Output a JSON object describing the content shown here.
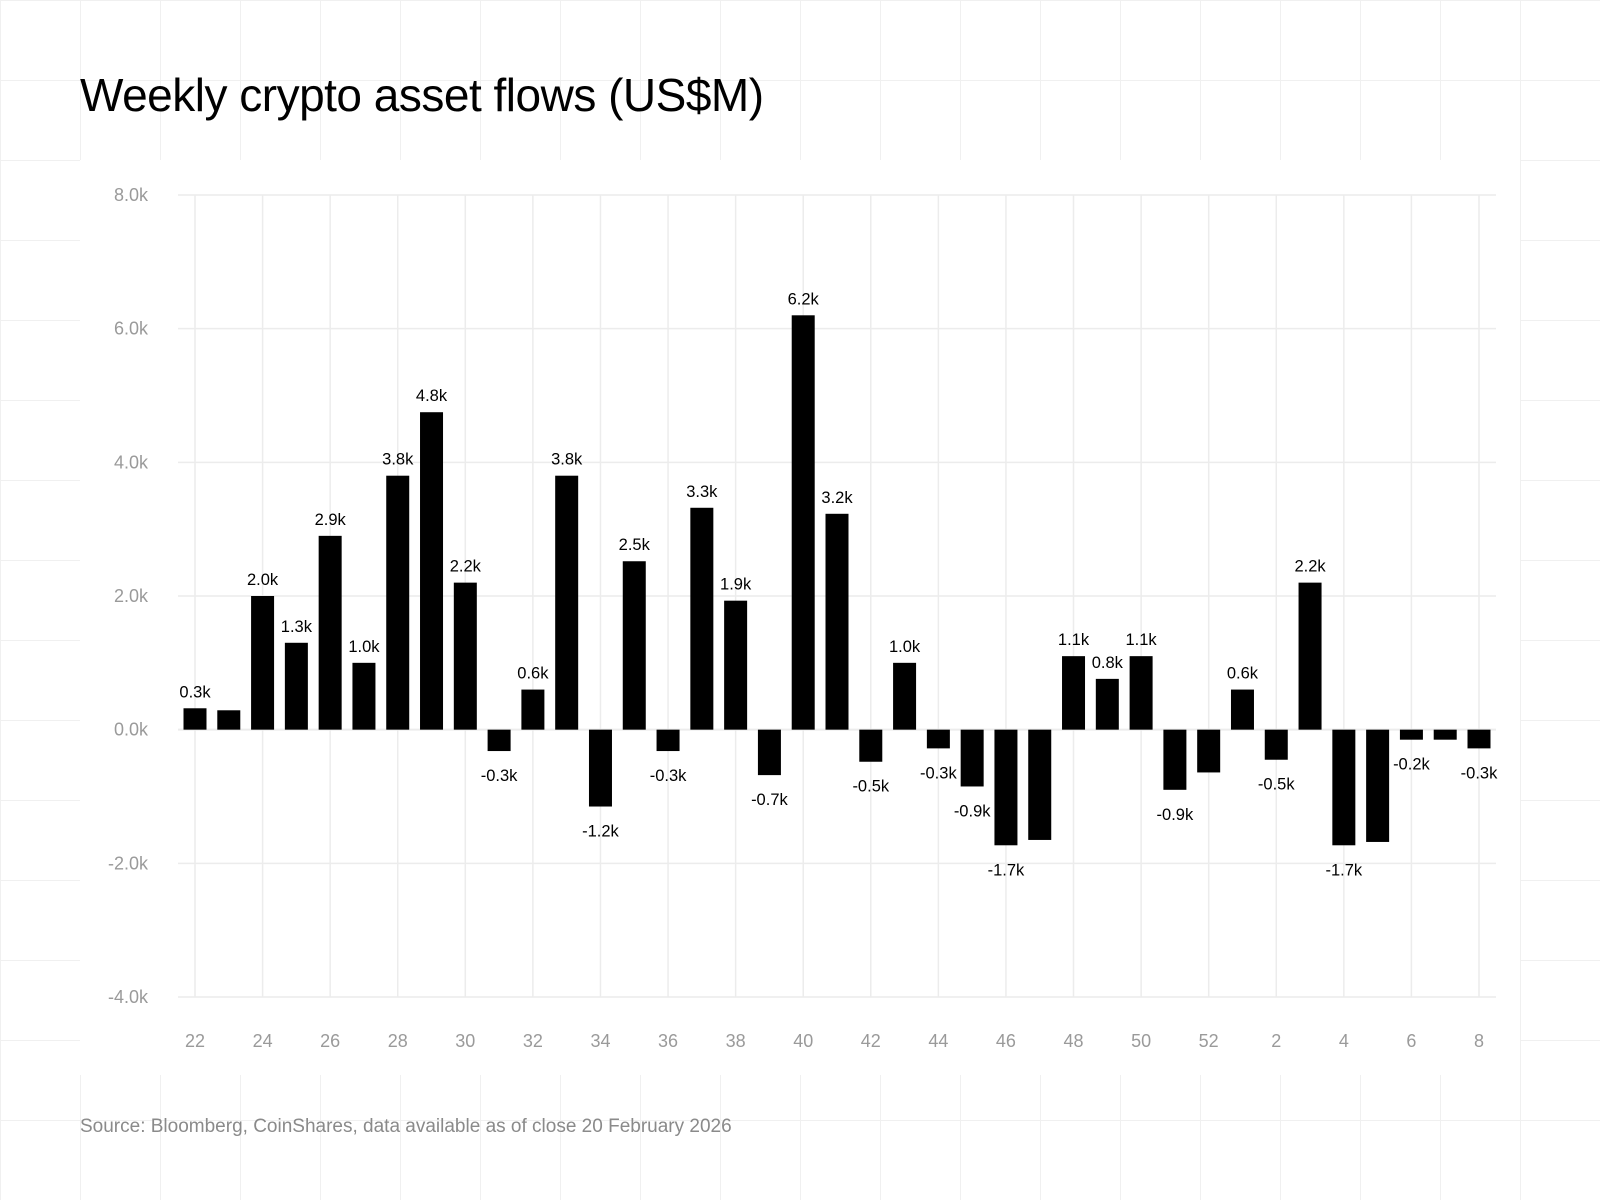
{
  "chart_data": {
    "type": "bar",
    "title": "Weekly crypto asset flows (US$M)",
    "xlabel": "",
    "ylabel": "",
    "ylim": [
      -4000,
      8000
    ],
    "yticks": [
      8000,
      6000,
      4000,
      2000,
      0,
      -2000,
      -4000
    ],
    "ytick_labels": [
      "8.0k",
      "6.0k",
      "4.0k",
      "2.0k",
      "0.0k",
      "-2.0k",
      "-4.0k"
    ],
    "categories": [
      "22",
      "23",
      "24",
      "25",
      "26",
      "27",
      "28",
      "29",
      "30",
      "31",
      "32",
      "33",
      "34",
      "35",
      "36",
      "37",
      "38",
      "39",
      "40",
      "41",
      "42",
      "43",
      "44",
      "45",
      "46",
      "47",
      "48",
      "49",
      "50",
      "51",
      "52",
      "1",
      "2",
      "3",
      "4",
      "5",
      "6",
      "7",
      "8"
    ],
    "xtick_labels": [
      "22",
      "24",
      "26",
      "28",
      "30",
      "32",
      "34",
      "36",
      "38",
      "40",
      "42",
      "44",
      "46",
      "48",
      "50",
      "52",
      "2",
      "4",
      "6",
      "8"
    ],
    "values": [
      320,
      290,
      2000,
      1300,
      2900,
      1000,
      3800,
      4750,
      2200,
      -320,
      600,
      3800,
      -1150,
      2520,
      -320,
      3320,
      1930,
      -680,
      6200,
      3230,
      -480,
      1000,
      -280,
      -850,
      -1730,
      -1650,
      1100,
      760,
      1100,
      -900,
      -640,
      600,
      -450,
      2200,
      -1730,
      -1680,
      -150,
      -150,
      -280
    ],
    "data_labels": [
      "0.3k",
      null,
      "2.0k",
      "1.3k",
      "2.9k",
      "1.0k",
      "3.8k",
      "4.8k",
      "2.2k",
      "-0.3k",
      "0.6k",
      "3.8k",
      "-1.2k",
      "2.5k",
      "-0.3k",
      "3.3k",
      "1.9k",
      "-0.7k",
      "6.2k",
      "3.2k",
      "-0.5k",
      "1.0k",
      "-0.3k",
      "-0.9k",
      "-1.7k",
      null,
      "1.1k",
      "0.8k",
      "1.1k",
      "-0.9k",
      null,
      "0.6k",
      "-0.5k",
      "2.2k",
      "-1.7k",
      null,
      "-0.2k",
      null,
      "-0.3k"
    ],
    "grid": true,
    "bar_color": "#000000",
    "grid_color": "#ececec",
    "tick_label_color": "#9a9a9a",
    "source": "Source: Bloomberg, CoinShares, data available as of close 20 February 2026"
  }
}
